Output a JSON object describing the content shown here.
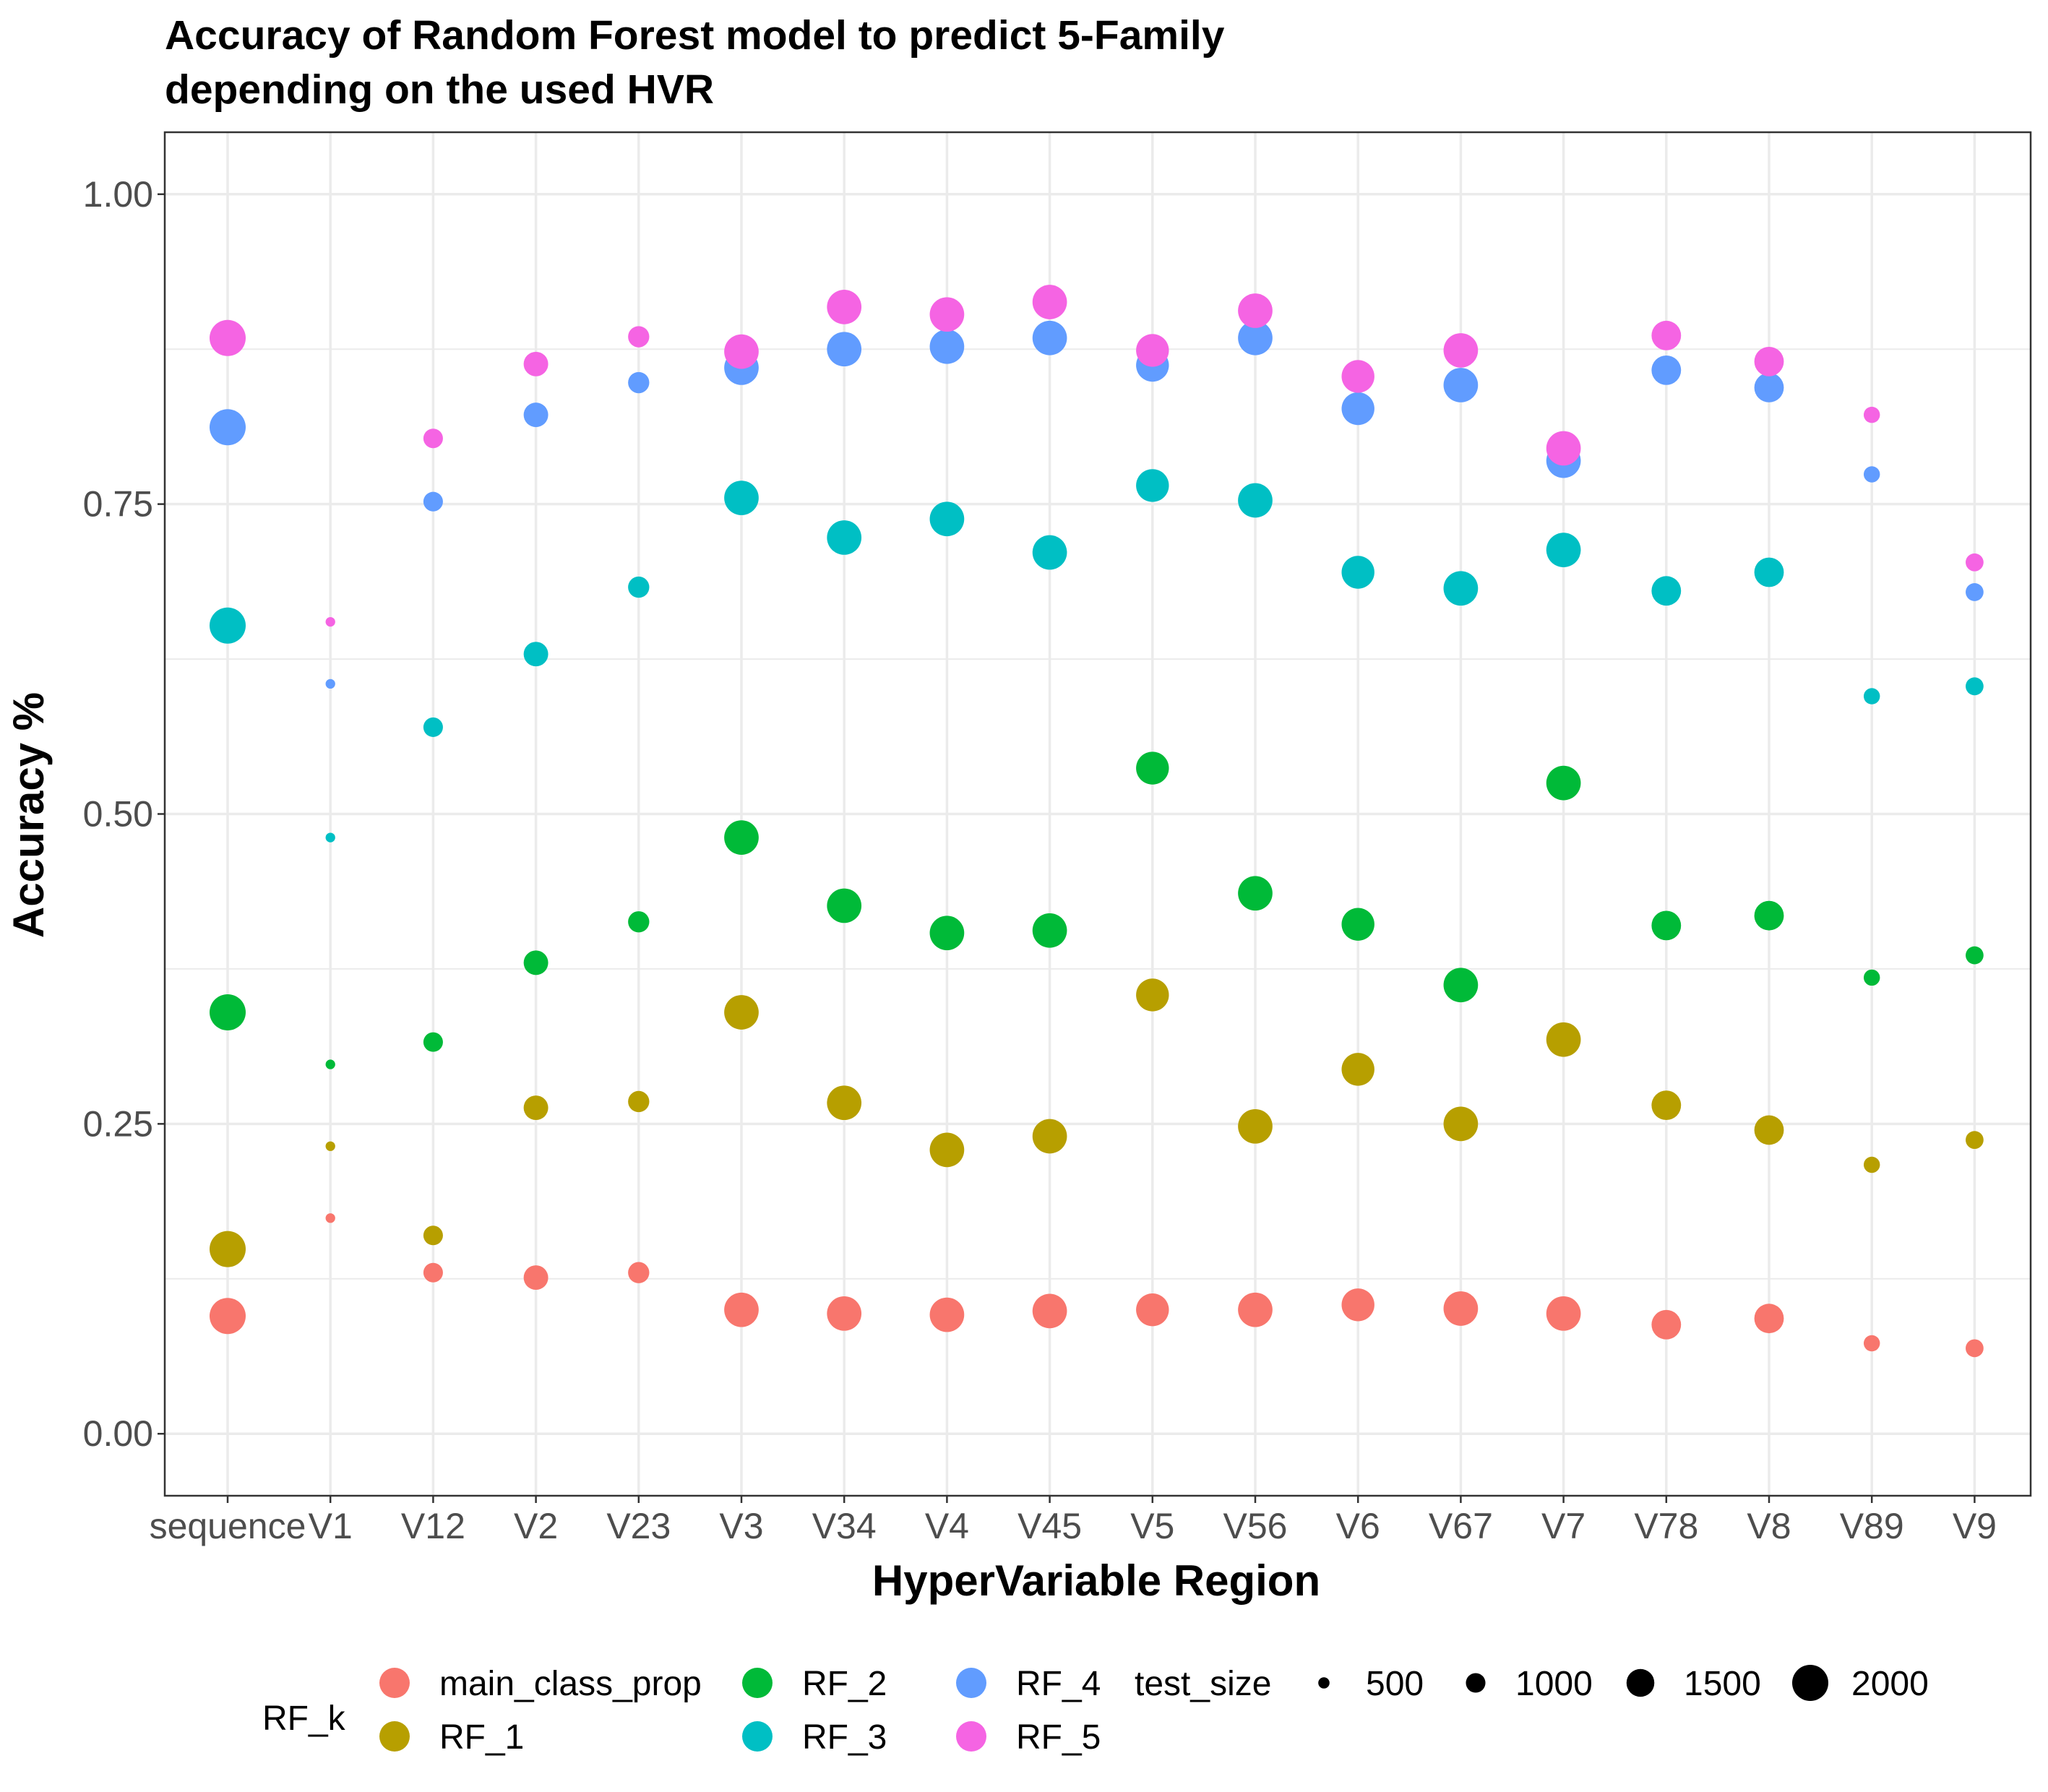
{
  "chart_data": {
    "type": "scatter",
    "title": "Accuracy of Random Forest model to predict 5-Family\ndepending on the used HVR",
    "xlabel": "HyperVariable Region",
    "ylabel": "Accuracy %",
    "categories": [
      "sequence",
      "V1",
      "V12",
      "V2",
      "V23",
      "V3",
      "V34",
      "V4",
      "V45",
      "V5",
      "V56",
      "V6",
      "V67",
      "V7",
      "V78",
      "V8",
      "V89",
      "V9"
    ],
    "ylim": [
      -0.05,
      1.05
    ],
    "yticks": [
      0.0,
      0.25,
      0.5,
      0.75,
      1.0
    ],
    "ytick_labels": [
      "0.00",
      "0.25",
      "0.50",
      "0.75",
      "1.00"
    ],
    "grid": true,
    "legend_position": "bottom",
    "test_size": [
      2000,
      400,
      1000,
      1300,
      1100,
      1900,
      1900,
      1900,
      1900,
      1800,
      1900,
      1800,
      1900,
      1900,
      1600,
      1600,
      800,
      900
    ],
    "series": [
      {
        "name": "main_class_prop",
        "color": "#F8766D",
        "values": [
          0.095,
          0.174,
          0.13,
          0.126,
          0.13,
          0.1,
          0.097,
          0.096,
          0.099,
          0.1,
          0.1,
          0.104,
          0.101,
          0.097,
          0.088,
          0.093,
          0.073,
          0.069
        ]
      },
      {
        "name": "RF_1",
        "color": "#B79F00",
        "values": [
          0.149,
          0.232,
          0.16,
          0.263,
          0.268,
          0.34,
          0.267,
          0.229,
          0.24,
          0.354,
          0.248,
          0.294,
          0.25,
          0.318,
          0.265,
          0.245,
          0.217,
          0.237
        ]
      },
      {
        "name": "RF_2",
        "color": "#00BA38",
        "values": [
          0.34,
          0.298,
          0.316,
          0.38,
          0.413,
          0.481,
          0.426,
          0.404,
          0.406,
          0.537,
          0.436,
          0.411,
          0.362,
          0.525,
          0.41,
          0.418,
          0.368,
          0.386
        ]
      },
      {
        "name": "RF_3",
        "color": "#00BFC4",
        "values": [
          0.652,
          0.481,
          0.57,
          0.629,
          0.683,
          0.755,
          0.723,
          0.738,
          0.711,
          0.765,
          0.753,
          0.695,
          0.682,
          0.713,
          0.68,
          0.695,
          0.595,
          0.603
        ]
      },
      {
        "name": "RF_4",
        "color": "#619CFF",
        "values": [
          0.812,
          0.605,
          0.752,
          0.822,
          0.848,
          0.86,
          0.875,
          0.877,
          0.884,
          0.862,
          0.884,
          0.827,
          0.846,
          0.785,
          0.858,
          0.844,
          0.774,
          0.679
        ]
      },
      {
        "name": "RF_5",
        "color": "#F564E3",
        "values": [
          0.884,
          0.655,
          0.803,
          0.863,
          0.885,
          0.873,
          0.909,
          0.903,
          0.913,
          0.874,
          0.906,
          0.853,
          0.874,
          0.795,
          0.886,
          0.865,
          0.822,
          0.703
        ]
      }
    ],
    "legend": {
      "color_title": "RF_k",
      "size_title": "test_size",
      "size_breaks": [
        500,
        1000,
        1500,
        2000
      ],
      "size_labels": [
        "500",
        "1000",
        "1500",
        "2000"
      ]
    }
  }
}
